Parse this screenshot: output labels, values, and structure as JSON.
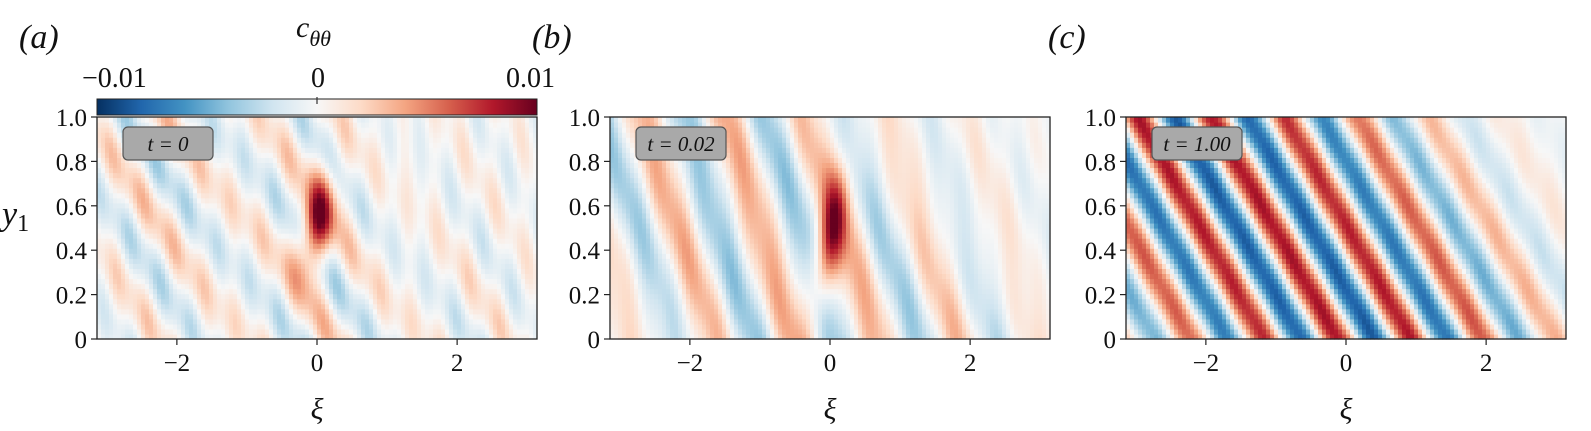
{
  "colorbar": {
    "label_main": "c",
    "label_sub": "θθ",
    "ticks": [
      "−0.01",
      "0",
      "0.01"
    ],
    "range": [
      -0.01,
      0.01
    ],
    "colormap": [
      "#053061",
      "#2166ac",
      "#4393c3",
      "#92c5de",
      "#d1e5f0",
      "#f7f7f7",
      "#fddbc7",
      "#f4a582",
      "#d6604d",
      "#b2182b",
      "#67001f"
    ]
  },
  "chart_data": [
    {
      "type": "heatmap",
      "panel_label": "(a)",
      "time_label": "t = 0",
      "xlabel": "ξ",
      "ylabel_main": "y",
      "ylabel_sub": "1",
      "x_range": [
        -3.14,
        3.14
      ],
      "y_range": [
        0,
        1
      ],
      "x_ticks": [
        {
          "value": -2,
          "label": "−2"
        },
        {
          "value": 0,
          "label": "0"
        },
        {
          "value": 2,
          "label": "2"
        }
      ],
      "y_ticks": [
        {
          "value": 0,
          "label": "0"
        },
        {
          "value": 0.2,
          "label": "0.2"
        },
        {
          "value": 0.4,
          "label": "0.4"
        },
        {
          "value": 0.6,
          "label": "0.6"
        },
        {
          "value": 0.8,
          "label": "0.8"
        },
        {
          "value": 1.0,
          "label": "1.0"
        }
      ],
      "field": {
        "kx": 5.0,
        "tilt": 2.0,
        "amp_wave": 0.0025,
        "core_amp": 0.0085,
        "core_x0": 0.0,
        "core_y0": 0.52,
        "core_sx": 0.22,
        "core_sy": 0.22,
        "noise": 0.0015
      }
    },
    {
      "type": "heatmap",
      "panel_label": "(b)",
      "time_label": "t = 0.02",
      "xlabel": "ξ",
      "ylabel_main": "",
      "ylabel_sub": "",
      "x_range": [
        -3.14,
        3.14
      ],
      "y_range": [
        0,
        1
      ],
      "x_ticks": [
        {
          "value": -2,
          "label": "−2"
        },
        {
          "value": 0,
          "label": "0"
        },
        {
          "value": 2,
          "label": "2"
        }
      ],
      "y_ticks": [
        {
          "value": 0,
          "label": "0"
        },
        {
          "value": 0.2,
          "label": "0.2"
        },
        {
          "value": 0.4,
          "label": "0.4"
        },
        {
          "value": 0.6,
          "label": "0.6"
        },
        {
          "value": 0.8,
          "label": "0.8"
        },
        {
          "value": 1.0,
          "label": "1.0"
        }
      ],
      "field": {
        "kx": 5.4,
        "tilt": 0.9,
        "amp_wave": 0.004,
        "core_amp": 0.0075,
        "core_x0": 0.0,
        "core_y0": 0.45,
        "core_sx": 0.2,
        "core_sy": 0.3,
        "noise": 0.0008
      }
    },
    {
      "type": "heatmap",
      "panel_label": "(c)",
      "time_label": "t = 1.00",
      "xlabel": "ξ",
      "ylabel_main": "",
      "ylabel_sub": "",
      "x_range": [
        -3.14,
        3.14
      ],
      "y_range": [
        0,
        1
      ],
      "x_ticks": [
        {
          "value": -2,
          "label": "−2"
        },
        {
          "value": 0,
          "label": "0"
        },
        {
          "value": 2,
          "label": "2"
        }
      ],
      "y_ticks": [
        {
          "value": 0,
          "label": "0"
        },
        {
          "value": 0.2,
          "label": "0.2"
        },
        {
          "value": 0.4,
          "label": "0.4"
        },
        {
          "value": 0.6,
          "label": "0.6"
        },
        {
          "value": 0.8,
          "label": "0.8"
        },
        {
          "value": 1.0,
          "label": "1.0"
        }
      ],
      "field": {
        "kx": 6.0,
        "tilt": 1.8,
        "amp_wave": 0.0085,
        "core_amp": 0.0,
        "core_x0": 0.0,
        "core_y0": 0.5,
        "core_sx": 0.2,
        "core_sy": 0.2,
        "noise": 0.0005
      }
    }
  ]
}
